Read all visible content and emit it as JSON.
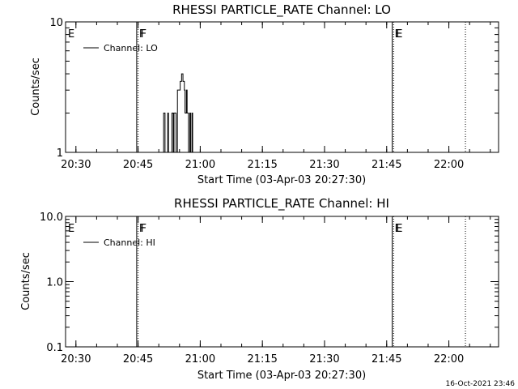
{
  "footer": {
    "timestamp": "16-Oct-2021 23:46"
  },
  "chart_data": [
    {
      "type": "line",
      "title": "RHESSI PARTICLE_RATE Channel: LO",
      "xlabel": "Start Time (03-Apr-03 20:27:30)",
      "ylabel": "Counts/sec",
      "y_scale": "log",
      "ylim": [
        1,
        10
      ],
      "xlim": [
        "20:27:30",
        "22:12:00"
      ],
      "x_ticks": [
        "20:30",
        "20:45",
        "21:00",
        "21:15",
        "21:30",
        "21:45",
        "22:00"
      ],
      "y_ticks": [
        "1",
        "10"
      ],
      "legend": {
        "position": "top-left",
        "entries": [
          "Channel: LO"
        ]
      },
      "flags": [
        {
          "label": "E",
          "time": "20:27:30",
          "style": "solid"
        },
        {
          "label": "F",
          "time": "20:44:40",
          "style": "solid"
        },
        {
          "label": "F",
          "time": "20:45:00",
          "style": "dotted"
        },
        {
          "label": "E",
          "time": "21:46:20",
          "style": "solid"
        },
        {
          "label": "E",
          "time": "21:46:40",
          "style": "dotted"
        },
        {
          "label": "",
          "time": "22:04:00",
          "style": "dotted"
        }
      ],
      "series": [
        {
          "name": "Channel: LO",
          "points": [
            [
              "20:51:00",
              1
            ],
            [
              "20:51:10",
              2
            ],
            [
              "20:51:30",
              1
            ],
            [
              "20:52:00",
              1
            ],
            [
              "20:52:10",
              2
            ],
            [
              "20:52:20",
              1
            ],
            [
              "20:53:00",
              1
            ],
            [
              "20:53:10",
              2
            ],
            [
              "20:53:30",
              1
            ],
            [
              "20:53:40",
              2
            ],
            [
              "20:54:00",
              2
            ],
            [
              "20:54:10",
              1
            ],
            [
              "20:54:30",
              3
            ],
            [
              "20:55:00",
              3
            ],
            [
              "20:55:10",
              3.5
            ],
            [
              "20:55:30",
              4
            ],
            [
              "20:55:50",
              3.5
            ],
            [
              "20:56:10",
              3
            ],
            [
              "20:56:20",
              2
            ],
            [
              "20:56:40",
              3
            ],
            [
              "20:56:50",
              2
            ],
            [
              "20:57:00",
              2
            ],
            [
              "20:57:10",
              1
            ],
            [
              "20:57:30",
              2
            ],
            [
              "20:57:40",
              1
            ],
            [
              "20:58:00",
              2
            ],
            [
              "20:58:10",
              1
            ],
            [
              "20:58:30",
              1
            ]
          ]
        }
      ]
    },
    {
      "type": "line",
      "title": "RHESSI PARTICLE_RATE Channel: HI",
      "xlabel": "Start Time (03-Apr-03 20:27:30)",
      "ylabel": "Counts/sec",
      "y_scale": "log",
      "ylim": [
        0.1,
        10
      ],
      "xlim": [
        "20:27:30",
        "22:12:00"
      ],
      "x_ticks": [
        "20:30",
        "20:45",
        "21:00",
        "21:15",
        "21:30",
        "21:45",
        "22:00"
      ],
      "y_ticks": [
        "0.1",
        "1.0",
        "10.0"
      ],
      "legend": {
        "position": "top-left",
        "entries": [
          "Channel: HI"
        ]
      },
      "flags": [
        {
          "label": "E",
          "time": "20:27:30",
          "style": "solid"
        },
        {
          "label": "F",
          "time": "20:44:40",
          "style": "solid"
        },
        {
          "label": "F",
          "time": "20:45:00",
          "style": "dotted"
        },
        {
          "label": "E",
          "time": "21:46:20",
          "style": "solid"
        },
        {
          "label": "E",
          "time": "21:46:40",
          "style": "dotted"
        },
        {
          "label": "",
          "time": "22:04:00",
          "style": "dotted"
        }
      ],
      "series": [
        {
          "name": "Channel: HI",
          "points": []
        }
      ]
    }
  ]
}
